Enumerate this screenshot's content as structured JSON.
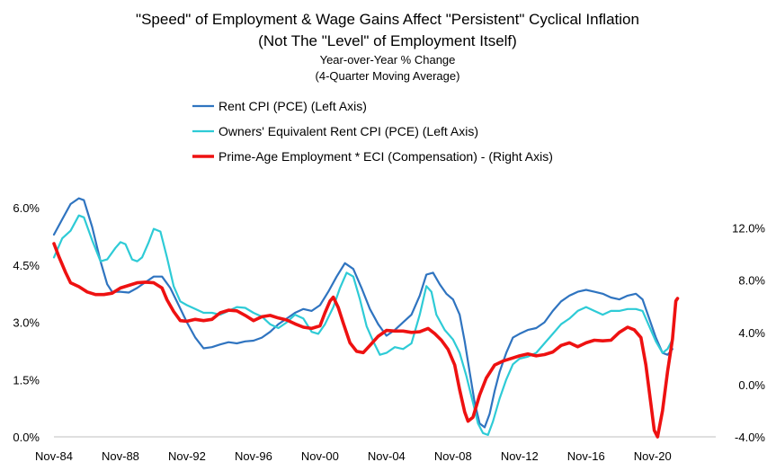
{
  "chart_data": {
    "type": "line",
    "title": "\"Speed\" of Employment & Wage Gains Affect \"Persistent\" Cyclical Inflation",
    "title_line2": "(Not The \"Level\" of Employment Itself)",
    "subtitle": "Year-over-Year % Change",
    "subtitle_line2": "(4-Quarter Moving Average)",
    "x_ticks": [
      "Nov-84",
      "Nov-88",
      "Nov-92",
      "Nov-96",
      "Nov-00",
      "Nov-04",
      "Nov-08",
      "Nov-12",
      "Nov-16",
      "Nov-20"
    ],
    "x_range": [
      1984.0,
      2023.8
    ],
    "y_left": {
      "ylim": [
        0,
        6.5
      ],
      "ticks": [
        "0.0%",
        "1.5%",
        "3.0%",
        "4.5%",
        "6.0%"
      ],
      "tick_values": [
        0,
        1.5,
        3.0,
        4.5,
        6.0
      ]
    },
    "y_right": {
      "ylim": [
        -4,
        15
      ],
      "ticks": [
        "-4.0%",
        "0.0%",
        "4.0%",
        "8.0%",
        "12.0%"
      ],
      "tick_values": [
        -4,
        0,
        4,
        8,
        12
      ]
    },
    "grid": false,
    "legend_position": "top",
    "series": [
      {
        "name": "Rent CPI (PCE) (Left Axis)",
        "axis": "left",
        "color": "#2f74c0",
        "points": [
          [
            1984.0,
            5.3
          ],
          [
            1984.5,
            5.7
          ],
          [
            1985.0,
            6.1
          ],
          [
            1985.5,
            6.25
          ],
          [
            1985.8,
            6.2
          ],
          [
            1986.3,
            5.5
          ],
          [
            1986.8,
            4.6
          ],
          [
            1987.2,
            4.0
          ],
          [
            1987.5,
            3.8
          ],
          [
            1988.0,
            3.8
          ],
          [
            1988.5,
            3.78
          ],
          [
            1989.0,
            3.9
          ],
          [
            1989.5,
            4.05
          ],
          [
            1990.0,
            4.2
          ],
          [
            1990.5,
            4.2
          ],
          [
            1991.0,
            3.9
          ],
          [
            1991.5,
            3.45
          ],
          [
            1992.0,
            3.0
          ],
          [
            1992.5,
            2.6
          ],
          [
            1993.0,
            2.32
          ],
          [
            1993.5,
            2.35
          ],
          [
            1994.0,
            2.42
          ],
          [
            1994.5,
            2.48
          ],
          [
            1995.0,
            2.45
          ],
          [
            1995.5,
            2.5
          ],
          [
            1996.0,
            2.52
          ],
          [
            1996.5,
            2.6
          ],
          [
            1997.0,
            2.75
          ],
          [
            1997.5,
            2.95
          ],
          [
            1998.0,
            3.1
          ],
          [
            1998.5,
            3.25
          ],
          [
            1999.0,
            3.35
          ],
          [
            1999.5,
            3.3
          ],
          [
            2000.0,
            3.45
          ],
          [
            2000.5,
            3.8
          ],
          [
            2001.0,
            4.2
          ],
          [
            2001.5,
            4.55
          ],
          [
            2002.0,
            4.4
          ],
          [
            2002.5,
            3.9
          ],
          [
            2003.0,
            3.35
          ],
          [
            2003.5,
            2.95
          ],
          [
            2004.0,
            2.65
          ],
          [
            2004.5,
            2.8
          ],
          [
            2005.0,
            3.0
          ],
          [
            2005.5,
            3.2
          ],
          [
            2006.0,
            3.7
          ],
          [
            2006.4,
            4.25
          ],
          [
            2006.8,
            4.3
          ],
          [
            2007.2,
            4.0
          ],
          [
            2007.6,
            3.75
          ],
          [
            2008.0,
            3.6
          ],
          [
            2008.4,
            3.2
          ],
          [
            2008.7,
            2.5
          ],
          [
            2009.0,
            1.7
          ],
          [
            2009.3,
            0.9
          ],
          [
            2009.6,
            0.35
          ],
          [
            2009.9,
            0.25
          ],
          [
            2010.2,
            0.6
          ],
          [
            2010.5,
            1.2
          ],
          [
            2010.8,
            1.7
          ],
          [
            2011.2,
            2.2
          ],
          [
            2011.6,
            2.6
          ],
          [
            2012.0,
            2.7
          ],
          [
            2012.5,
            2.8
          ],
          [
            2013.0,
            2.85
          ],
          [
            2013.5,
            3.0
          ],
          [
            2014.0,
            3.3
          ],
          [
            2014.5,
            3.55
          ],
          [
            2015.0,
            3.7
          ],
          [
            2015.5,
            3.8
          ],
          [
            2016.0,
            3.85
          ],
          [
            2016.5,
            3.8
          ],
          [
            2017.0,
            3.75
          ],
          [
            2017.5,
            3.65
          ],
          [
            2018.0,
            3.6
          ],
          [
            2018.5,
            3.7
          ],
          [
            2019.0,
            3.75
          ],
          [
            2019.4,
            3.6
          ],
          [
            2019.8,
            3.1
          ],
          [
            2020.2,
            2.6
          ],
          [
            2020.6,
            2.2
          ],
          [
            2020.9,
            2.15
          ],
          [
            2021.2,
            2.3
          ]
        ]
      },
      {
        "name": "Owners' Equivalent Rent CPI (PCE) (Left Axis)",
        "axis": "left",
        "color": "#2ecbd6",
        "points": [
          [
            1984.0,
            4.7
          ],
          [
            1984.5,
            5.2
          ],
          [
            1985.0,
            5.4
          ],
          [
            1985.5,
            5.8
          ],
          [
            1985.8,
            5.75
          ],
          [
            1986.3,
            5.15
          ],
          [
            1986.8,
            4.6
          ],
          [
            1987.2,
            4.65
          ],
          [
            1987.7,
            4.95
          ],
          [
            1988.0,
            5.1
          ],
          [
            1988.3,
            5.05
          ],
          [
            1988.7,
            4.65
          ],
          [
            1989.0,
            4.6
          ],
          [
            1989.3,
            4.7
          ],
          [
            1989.7,
            5.1
          ],
          [
            1990.0,
            5.45
          ],
          [
            1990.4,
            5.38
          ],
          [
            1990.8,
            4.7
          ],
          [
            1991.2,
            3.95
          ],
          [
            1991.6,
            3.55
          ],
          [
            1992.0,
            3.45
          ],
          [
            1992.5,
            3.35
          ],
          [
            1993.0,
            3.25
          ],
          [
            1993.5,
            3.25
          ],
          [
            1994.0,
            3.2
          ],
          [
            1994.5,
            3.3
          ],
          [
            1995.0,
            3.4
          ],
          [
            1995.5,
            3.38
          ],
          [
            1996.0,
            3.25
          ],
          [
            1996.5,
            3.15
          ],
          [
            1997.0,
            2.95
          ],
          [
            1997.5,
            2.85
          ],
          [
            1998.0,
            3.0
          ],
          [
            1998.5,
            3.2
          ],
          [
            1999.0,
            3.1
          ],
          [
            1999.5,
            2.75
          ],
          [
            1999.9,
            2.7
          ],
          [
            2000.3,
            2.95
          ],
          [
            2000.8,
            3.4
          ],
          [
            2001.2,
            3.9
          ],
          [
            2001.6,
            4.3
          ],
          [
            2002.0,
            4.2
          ],
          [
            2002.4,
            3.6
          ],
          [
            2002.8,
            2.9
          ],
          [
            2003.2,
            2.5
          ],
          [
            2003.6,
            2.15
          ],
          [
            2004.0,
            2.2
          ],
          [
            2004.5,
            2.35
          ],
          [
            2005.0,
            2.3
          ],
          [
            2005.5,
            2.45
          ],
          [
            2006.0,
            3.2
          ],
          [
            2006.4,
            3.95
          ],
          [
            2006.7,
            3.8
          ],
          [
            2007.0,
            3.2
          ],
          [
            2007.5,
            2.8
          ],
          [
            2008.0,
            2.55
          ],
          [
            2008.4,
            2.2
          ],
          [
            2008.8,
            1.6
          ],
          [
            2009.2,
            0.9
          ],
          [
            2009.5,
            0.35
          ],
          [
            2009.8,
            0.1
          ],
          [
            2010.1,
            0.05
          ],
          [
            2010.4,
            0.4
          ],
          [
            2010.8,
            1.0
          ],
          [
            2011.2,
            1.5
          ],
          [
            2011.6,
            1.9
          ],
          [
            2012.0,
            2.05
          ],
          [
            2012.5,
            2.1
          ],
          [
            2013.0,
            2.2
          ],
          [
            2013.5,
            2.45
          ],
          [
            2014.0,
            2.7
          ],
          [
            2014.5,
            2.95
          ],
          [
            2015.0,
            3.1
          ],
          [
            2015.5,
            3.3
          ],
          [
            2016.0,
            3.4
          ],
          [
            2016.5,
            3.3
          ],
          [
            2017.0,
            3.2
          ],
          [
            2017.5,
            3.3
          ],
          [
            2018.0,
            3.3
          ],
          [
            2018.5,
            3.35
          ],
          [
            2019.0,
            3.35
          ],
          [
            2019.4,
            3.3
          ],
          [
            2019.8,
            2.9
          ],
          [
            2020.2,
            2.5
          ],
          [
            2020.6,
            2.2
          ],
          [
            2020.9,
            2.3
          ],
          [
            2021.2,
            2.55
          ]
        ]
      },
      {
        "name": "Prime-Age Employment * ECI (Compensation) - (Right Axis)",
        "axis": "right",
        "color": "#ee1111",
        "points": [
          [
            1984.0,
            10.8
          ],
          [
            1984.3,
            9.8
          ],
          [
            1984.7,
            8.6
          ],
          [
            1985.0,
            7.8
          ],
          [
            1985.5,
            7.5
          ],
          [
            1986.0,
            7.1
          ],
          [
            1986.5,
            6.9
          ],
          [
            1987.0,
            6.9
          ],
          [
            1987.5,
            7.0
          ],
          [
            1988.0,
            7.4
          ],
          [
            1988.5,
            7.6
          ],
          [
            1989.0,
            7.8
          ],
          [
            1989.5,
            7.85
          ],
          [
            1990.0,
            7.8
          ],
          [
            1990.5,
            7.4
          ],
          [
            1990.8,
            6.5
          ],
          [
            1991.2,
            5.6
          ],
          [
            1991.6,
            4.9
          ],
          [
            1992.0,
            4.85
          ],
          [
            1992.5,
            5.0
          ],
          [
            1993.0,
            4.9
          ],
          [
            1993.5,
            5.0
          ],
          [
            1994.0,
            5.5
          ],
          [
            1994.5,
            5.7
          ],
          [
            1995.0,
            5.65
          ],
          [
            1995.5,
            5.3
          ],
          [
            1996.0,
            4.9
          ],
          [
            1996.5,
            5.2
          ],
          [
            1997.0,
            5.3
          ],
          [
            1997.5,
            5.1
          ],
          [
            1998.0,
            4.95
          ],
          [
            1998.5,
            4.65
          ],
          [
            1999.0,
            4.4
          ],
          [
            1999.5,
            4.3
          ],
          [
            2000.0,
            4.5
          ],
          [
            2000.3,
            5.5
          ],
          [
            2000.6,
            6.4
          ],
          [
            2000.8,
            6.7
          ],
          [
            2001.1,
            5.9
          ],
          [
            2001.4,
            4.7
          ],
          [
            2001.8,
            3.2
          ],
          [
            2002.2,
            2.55
          ],
          [
            2002.6,
            2.45
          ],
          [
            2003.0,
            3.0
          ],
          [
            2003.5,
            3.7
          ],
          [
            2004.0,
            4.15
          ],
          [
            2004.5,
            4.1
          ],
          [
            2005.0,
            4.1
          ],
          [
            2005.5,
            4.0
          ],
          [
            2006.0,
            4.05
          ],
          [
            2006.5,
            4.3
          ],
          [
            2006.9,
            3.9
          ],
          [
            2007.3,
            3.4
          ],
          [
            2007.7,
            2.7
          ],
          [
            2008.1,
            1.5
          ],
          [
            2008.4,
            -0.4
          ],
          [
            2008.7,
            -2.1
          ],
          [
            2008.9,
            -2.8
          ],
          [
            2009.2,
            -2.5
          ],
          [
            2009.6,
            -0.8
          ],
          [
            2010.0,
            0.5
          ],
          [
            2010.5,
            1.5
          ],
          [
            2011.0,
            1.8
          ],
          [
            2011.5,
            2.0
          ],
          [
            2012.0,
            2.2
          ],
          [
            2012.5,
            2.35
          ],
          [
            2013.0,
            2.2
          ],
          [
            2013.5,
            2.3
          ],
          [
            2014.0,
            2.5
          ],
          [
            2014.5,
            3.0
          ],
          [
            2015.0,
            3.2
          ],
          [
            2015.5,
            2.9
          ],
          [
            2016.0,
            3.2
          ],
          [
            2016.5,
            3.4
          ],
          [
            2017.0,
            3.35
          ],
          [
            2017.5,
            3.4
          ],
          [
            2018.0,
            4.0
          ],
          [
            2018.5,
            4.4
          ],
          [
            2018.9,
            4.2
          ],
          [
            2019.3,
            3.6
          ],
          [
            2019.6,
            1.5
          ],
          [
            2019.9,
            -1.5
          ],
          [
            2020.1,
            -3.5
          ],
          [
            2020.3,
            -4.0
          ],
          [
            2020.6,
            -2.0
          ],
          [
            2020.9,
            1.0
          ],
          [
            2021.2,
            3.5
          ],
          [
            2021.4,
            6.4
          ],
          [
            2021.5,
            6.6
          ]
        ]
      }
    ]
  }
}
